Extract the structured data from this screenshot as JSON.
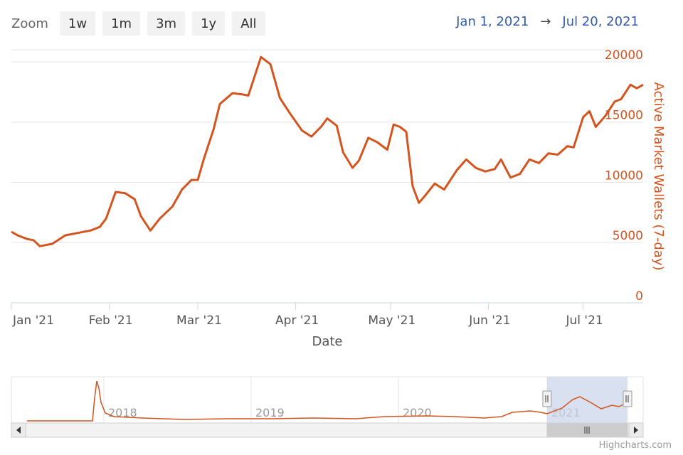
{
  "zoom": {
    "label": "Zoom",
    "buttons": [
      "1w",
      "1m",
      "3m",
      "1y",
      "All"
    ]
  },
  "range": {
    "from": "Jan 1, 2021",
    "arrow": "→",
    "to": "Jul 20, 2021"
  },
  "credits": "Highcharts.com",
  "colors": {
    "line": "#d4541f",
    "axis_title": "#d4541f",
    "grid": "#e6e6e6",
    "navigator_mask": "#ccd6eb"
  },
  "chart_data": {
    "type": "line",
    "xlabel": "Date",
    "ylabel": "Active Market Wallets (7-day)",
    "ylim": [
      0,
      21000
    ],
    "yticks": [
      0,
      5000,
      10000,
      15000,
      20000
    ],
    "xlim": [
      "2021-01-01",
      "2021-07-20"
    ],
    "xticks": [
      {
        "date": "2021-01-01",
        "label": "Jan '21"
      },
      {
        "date": "2021-02-01",
        "label": "Feb '21"
      },
      {
        "date": "2021-03-01",
        "label": "Mar '21"
      },
      {
        "date": "2021-04-01",
        "label": "Apr '21"
      },
      {
        "date": "2021-05-01",
        "label": "May '21"
      },
      {
        "date": "2021-06-01",
        "label": "Jun '21"
      },
      {
        "date": "2021-07-01",
        "label": "Jul '21"
      }
    ],
    "grid": true,
    "series": [
      {
        "x": [
          "2021-01-01",
          "2021-01-03",
          "2021-01-06",
          "2021-01-08",
          "2021-01-10",
          "2021-01-14",
          "2021-01-18",
          "2021-01-22",
          "2021-01-26",
          "2021-01-29",
          "2021-01-31",
          "2021-02-03",
          "2021-02-06",
          "2021-02-09",
          "2021-02-11",
          "2021-02-14",
          "2021-02-17",
          "2021-02-21",
          "2021-02-24",
          "2021-02-27",
          "2021-03-01",
          "2021-03-03",
          "2021-03-06",
          "2021-03-08",
          "2021-03-12",
          "2021-03-15",
          "2021-03-17",
          "2021-03-19",
          "2021-03-21",
          "2021-03-24",
          "2021-03-27",
          "2021-03-30",
          "2021-04-03",
          "2021-04-06",
          "2021-04-09",
          "2021-04-11",
          "2021-04-14",
          "2021-04-16",
          "2021-04-19",
          "2021-04-21",
          "2021-04-24",
          "2021-04-27",
          "2021-04-30",
          "2021-05-02",
          "2021-05-04",
          "2021-05-06",
          "2021-05-08",
          "2021-05-10",
          "2021-05-12",
          "2021-05-15",
          "2021-05-18",
          "2021-05-22",
          "2021-05-25",
          "2021-05-28",
          "2021-05-31",
          "2021-06-03",
          "2021-06-05",
          "2021-06-08",
          "2021-06-11",
          "2021-06-14",
          "2021-06-17",
          "2021-06-20",
          "2021-06-23",
          "2021-06-26",
          "2021-06-28",
          "2021-07-01",
          "2021-07-03",
          "2021-07-05",
          "2021-07-08",
          "2021-07-11",
          "2021-07-13",
          "2021-07-16",
          "2021-07-18",
          "2021-07-20"
        ],
        "y": [
          5900,
          5600,
          5300,
          5200,
          4700,
          4900,
          5600,
          5800,
          6000,
          6300,
          7000,
          9200,
          9100,
          8600,
          7200,
          6000,
          7000,
          8000,
          9400,
          10200,
          10200,
          12000,
          14400,
          16500,
          17400,
          17300,
          17200,
          18800,
          20400,
          19800,
          17000,
          15800,
          14300,
          13800,
          14600,
          15300,
          14700,
          12500,
          11200,
          11800,
          13700,
          13300,
          12700,
          14800,
          14600,
          14200,
          9700,
          8300,
          8900,
          9900,
          9400,
          11000,
          11900,
          11200,
          10900,
          11100,
          11900,
          10400,
          10700,
          11900,
          11600,
          12400,
          12300,
          13000,
          12900,
          15400,
          15900,
          14600,
          15500,
          16700,
          16900,
          18100,
          17800,
          18100
        ]
      }
    ],
    "navigator": {
      "labels": [
        "2018",
        "2019",
        "2020",
        "2021"
      ]
    }
  }
}
